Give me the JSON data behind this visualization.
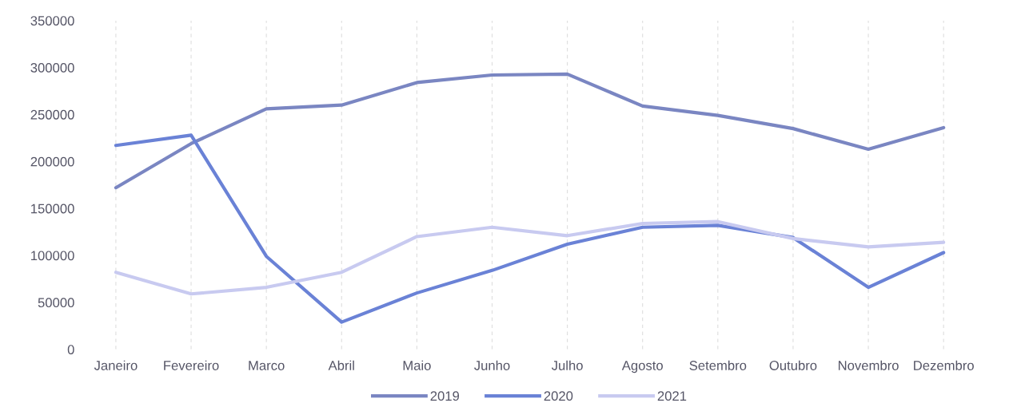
{
  "chart_data": {
    "type": "line",
    "categories": [
      "Janeiro",
      "Fevereiro",
      "Marco",
      "Abril",
      "Maio",
      "Junho",
      "Julho",
      "Agosto",
      "Setembro",
      "Outubro",
      "Novembro",
      "Dezembro"
    ],
    "series": [
      {
        "name": "2019",
        "color": "#7a86c2",
        "values": [
          172000,
          219000,
          256000,
          260000,
          284000,
          292000,
          293000,
          259000,
          249000,
          235000,
          213000,
          236000
        ]
      },
      {
        "name": "2020",
        "color": "#6a82d6",
        "values": [
          217000,
          228000,
          99000,
          29000,
          60000,
          84000,
          112000,
          130000,
          132000,
          119000,
          66000,
          103000
        ]
      },
      {
        "name": "2021",
        "color": "#c8caf0",
        "values": [
          82000,
          59000,
          66000,
          82000,
          120000,
          130000,
          121000,
          134000,
          136000,
          118000,
          109000,
          114000
        ]
      }
    ],
    "ylim": [
      0,
      350000
    ],
    "yticks": [
      0,
      50000,
      100000,
      150000,
      200000,
      250000,
      300000,
      350000
    ],
    "grid": "x",
    "legend": "bottom",
    "marker": "none",
    "line_style": "solid"
  }
}
